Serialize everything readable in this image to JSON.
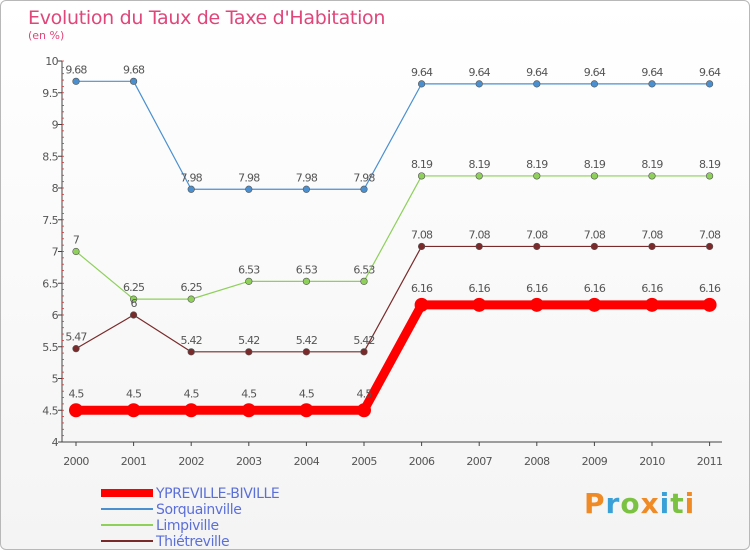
{
  "header": {
    "title": "Evolution du Taux de Taxe d'Habitation",
    "subtitle": "(en %)"
  },
  "logo": {
    "letters": [
      "P",
      "r",
      "o",
      "x",
      "i",
      "t",
      "i"
    ],
    "colors": [
      "#f08a24",
      "#3aa0d8",
      "#7cc242",
      "#f08a24",
      "#3aa0d8",
      "#7cc242",
      "#f08a24"
    ]
  },
  "chart_data": {
    "type": "line",
    "title": "Evolution du Taux de Taxe d'Habitation",
    "subtitle": "(en %)",
    "x": [
      "2000",
      "2001",
      "2002",
      "2003",
      "2004",
      "2005",
      "2006",
      "2007",
      "2008",
      "2009",
      "2010",
      "2011"
    ],
    "ylim": [
      4,
      10
    ],
    "yticks": [
      "4",
      "4.5",
      "5",
      "5.5",
      "6",
      "6.5",
      "7",
      "7.5",
      "8",
      "8.5",
      "9",
      "9.5",
      "10"
    ],
    "legend_position": "bottom-left",
    "series": [
      {
        "name": "YPREVILLE-BIVILLE",
        "color": "#ff0000",
        "values": [
          4.5,
          4.5,
          4.5,
          4.5,
          4.5,
          4.5,
          6.16,
          6.16,
          6.16,
          6.16,
          6.16,
          6.16
        ],
        "labels": [
          "4.5",
          "4.5",
          "4.5",
          "4.5",
          "4.5",
          "4.5",
          "6.16",
          "6.16",
          "6.16",
          "6.16",
          "6.16",
          "6.16"
        ]
      },
      {
        "name": "Sorquainville",
        "color": "#4a90d0",
        "values": [
          9.68,
          9.68,
          7.98,
          7.98,
          7.98,
          7.98,
          9.64,
          9.64,
          9.64,
          9.64,
          9.64,
          9.64
        ],
        "labels": [
          "9.68",
          "9.68",
          "7.98",
          "7.98",
          "7.98",
          "7.98",
          "9.64",
          "9.64",
          "9.64",
          "9.64",
          "9.64",
          "9.64"
        ]
      },
      {
        "name": "Limpiville",
        "color": "#8ed05a",
        "values": [
          7,
          6.25,
          6.25,
          6.53,
          6.53,
          6.53,
          8.19,
          8.19,
          8.19,
          8.19,
          8.19,
          8.19
        ],
        "labels": [
          "7",
          "6.25",
          "6.25",
          "6.53",
          "6.53",
          "6.53",
          "8.19",
          "8.19",
          "8.19",
          "8.19",
          "8.19",
          "8.19"
        ]
      },
      {
        "name": "Thiétreville",
        "color": "#7a2a2a",
        "values": [
          5.47,
          6,
          5.42,
          5.42,
          5.42,
          5.42,
          7.08,
          7.08,
          7.08,
          7.08,
          7.08,
          7.08
        ],
        "labels": [
          "5.47",
          "6",
          "5.42",
          "5.42",
          "5.42",
          "5.42",
          "7.08",
          "7.08",
          "7.08",
          "7.08",
          "7.08",
          "7.08"
        ]
      }
    ]
  }
}
